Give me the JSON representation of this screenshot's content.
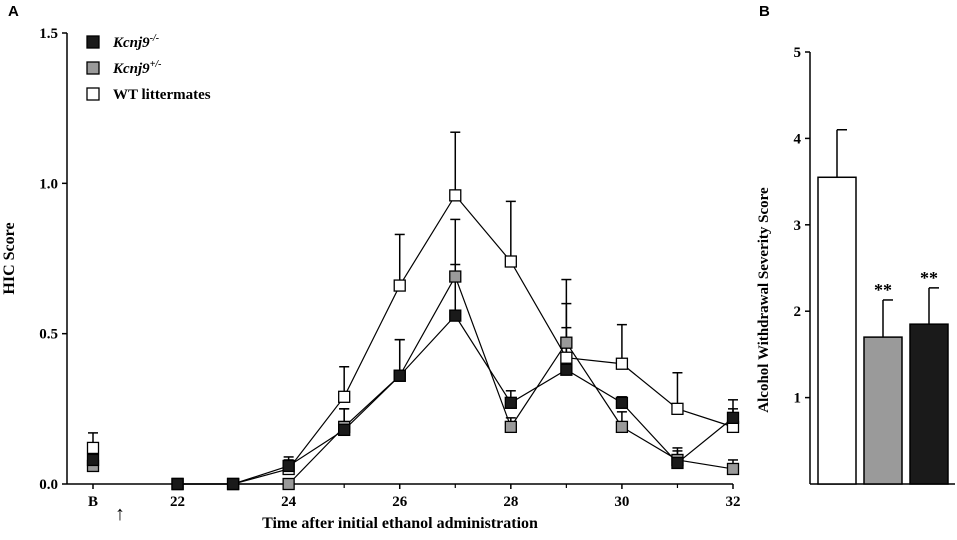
{
  "chart_data": [
    {
      "panel": "A",
      "type": "line",
      "xlabel": "Time after initial ethanol administration",
      "ylabel": "HIC Score",
      "ylim": [
        0,
        1.5
      ],
      "yticks": [
        "0.0",
        "0.5",
        "1.0",
        "1.5"
      ],
      "xticks": [
        "B",
        "22",
        "24",
        "26",
        "28",
        "30",
        "32"
      ],
      "xlim": [
        20,
        32
      ],
      "baseline_x_label": "B",
      "arrow_annotation": "↑",
      "legend_position": "top-left",
      "series": [
        {
          "name": "Kcnj9",
          "name_superscript": "-/-",
          "marker": "square",
          "color": "#1a1a1a",
          "baseline": {
            "y": 0.08,
            "err": 0.05
          },
          "points": [
            {
              "x": 22,
              "y": 0.0,
              "err": 0.0
            },
            {
              "x": 23,
              "y": 0.0,
              "err": 0.0
            },
            {
              "x": 24,
              "y": 0.06,
              "err": 0.03
            },
            {
              "x": 25,
              "y": 0.18,
              "err": 0.07
            },
            {
              "x": 26,
              "y": 0.36,
              "err": 0.12
            },
            {
              "x": 27,
              "y": 0.56,
              "err": 0.17
            },
            {
              "x": 28,
              "y": 0.27,
              "err": 0.04
            },
            {
              "x": 29,
              "y": 0.38,
              "err": 0.14
            },
            {
              "x": 30,
              "y": 0.27,
              "err": 0.02
            },
            {
              "x": 31,
              "y": 0.07,
              "err": 0.04
            },
            {
              "x": 32,
              "y": 0.22,
              "err": 0.06
            }
          ]
        },
        {
          "name": "Kcnj9",
          "name_superscript": "+/-",
          "marker": "square",
          "color": "#9a9a9a",
          "baseline": {
            "y": 0.06,
            "err": 0.03
          },
          "points": [
            {
              "x": 22,
              "y": 0.0,
              "err": 0.0
            },
            {
              "x": 23,
              "y": 0.0,
              "err": 0.0
            },
            {
              "x": 24,
              "y": 0.0,
              "err": 0.0
            },
            {
              "x": 25,
              "y": 0.19,
              "err": 0.06
            },
            {
              "x": 26,
              "y": 0.36,
              "err": 0.12
            },
            {
              "x": 27,
              "y": 0.69,
              "err": 0.19
            },
            {
              "x": 28,
              "y": 0.19,
              "err": 0.03
            },
            {
              "x": 29,
              "y": 0.47,
              "err": 0.21
            },
            {
              "x": 30,
              "y": 0.19,
              "err": 0.05
            },
            {
              "x": 31,
              "y": 0.08,
              "err": 0.04
            },
            {
              "x": 32,
              "y": 0.05,
              "err": 0.03
            }
          ]
        },
        {
          "name": "WT littermates",
          "name_superscript": "",
          "marker": "square",
          "color": "#ffffff",
          "baseline": {
            "y": 0.12,
            "err": 0.05
          },
          "points": [
            {
              "x": 22,
              "y": 0.0,
              "err": 0.0
            },
            {
              "x": 23,
              "y": 0.0,
              "err": 0.0
            },
            {
              "x": 24,
              "y": 0.05,
              "err": 0.03
            },
            {
              "x": 25,
              "y": 0.29,
              "err": 0.1
            },
            {
              "x": 26,
              "y": 0.66,
              "err": 0.17
            },
            {
              "x": 27,
              "y": 0.96,
              "err": 0.21
            },
            {
              "x": 28,
              "y": 0.74,
              "err": 0.2
            },
            {
              "x": 29,
              "y": 0.42,
              "err": 0.18
            },
            {
              "x": 30,
              "y": 0.4,
              "err": 0.13
            },
            {
              "x": 31,
              "y": 0.25,
              "err": 0.12
            },
            {
              "x": 32,
              "y": 0.19,
              "err": 0.06
            }
          ]
        }
      ]
    },
    {
      "panel": "B",
      "type": "bar",
      "ylabel": "Alcohol Withdrawal Severity Score",
      "ylim": [
        0,
        5
      ],
      "yticks": [
        "1",
        "2",
        "3",
        "4",
        "5"
      ],
      "bars": [
        {
          "value": 3.55,
          "err": 0.55,
          "color": "#ffffff",
          "annotation": ""
        },
        {
          "value": 1.7,
          "err": 0.43,
          "color": "#9a9a9a",
          "annotation": "**"
        },
        {
          "value": 1.85,
          "err": 0.42,
          "color": "#1a1a1a",
          "annotation": "**"
        }
      ]
    }
  ]
}
